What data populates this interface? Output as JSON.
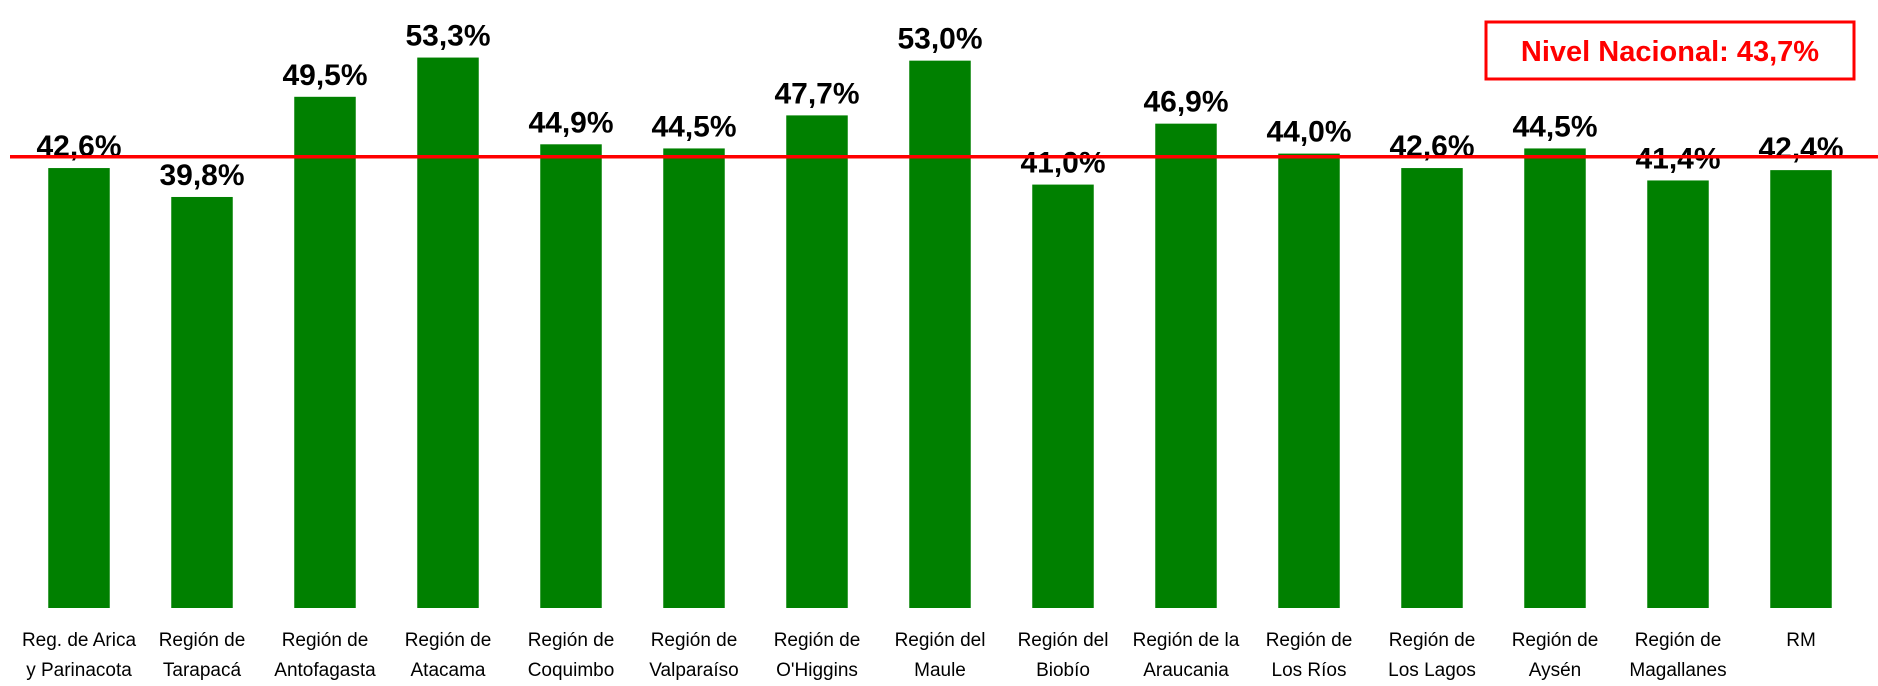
{
  "chart_data": {
    "type": "bar",
    "categories": [
      "Reg. de Arica y Parinacota",
      "Región de Tarapacá",
      "Región de Antofagasta",
      "Región de Atacama",
      "Región de Coquimbo",
      "Región de Valparaíso",
      "Región de O'Higgins",
      "Región del Maule",
      "Región del Biobío",
      "Región de la Araucania",
      "Región de Los Ríos",
      "Región de Los Lagos",
      "Región de Aysén",
      "Región de Magallanes",
      "RM"
    ],
    "values": [
      42.6,
      39.8,
      49.5,
      53.3,
      44.9,
      44.5,
      47.7,
      53.0,
      41.0,
      46.9,
      44.0,
      42.6,
      44.5,
      41.4,
      42.4
    ],
    "value_labels": [
      "42,6%",
      "39,8%",
      "49,5%",
      "53,3%",
      "44,9%",
      "44,5%",
      "47,7%",
      "53,0%",
      "41,0%",
      "46,9%",
      "44,0%",
      "42,6%",
      "44,5%",
      "41,4%",
      "42,4%"
    ],
    "color": "#008000",
    "ylim": [
      0,
      55
    ],
    "reference_line": {
      "value": 43.7,
      "label": "Nivel Nacional: 43,7%",
      "color": "#ff0000"
    }
  }
}
